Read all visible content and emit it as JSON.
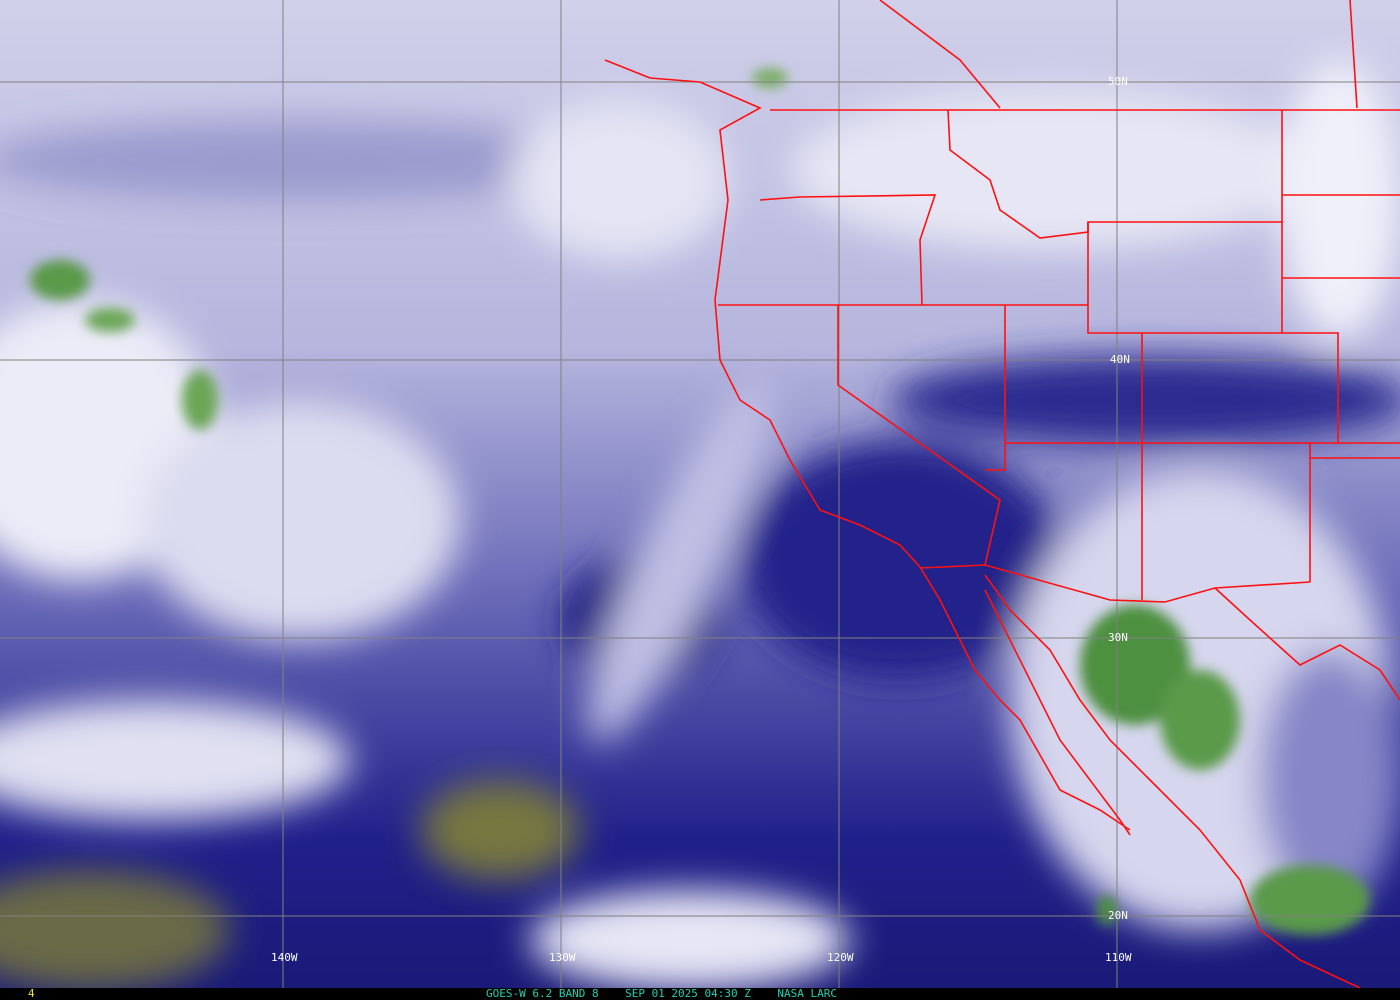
{
  "image": {
    "satellite_caption": "GOES-W 6.2 BAND 8    SEP 01 2025 04:30 Z    NASA LARC",
    "frame_number": "4",
    "latitude_labels": [
      "50N",
      "40N",
      "30N",
      "20N"
    ],
    "longitude_labels": [
      "140W",
      "130W",
      "120W",
      "110W"
    ],
    "colors": {
      "border": "#ff1010",
      "grid": "#808080",
      "dry": "#1c1c84",
      "moist": "#d8d8ee",
      "cloud": "#5a9a48",
      "caption": "#20d0b0",
      "frame": "#e8e040"
    }
  }
}
